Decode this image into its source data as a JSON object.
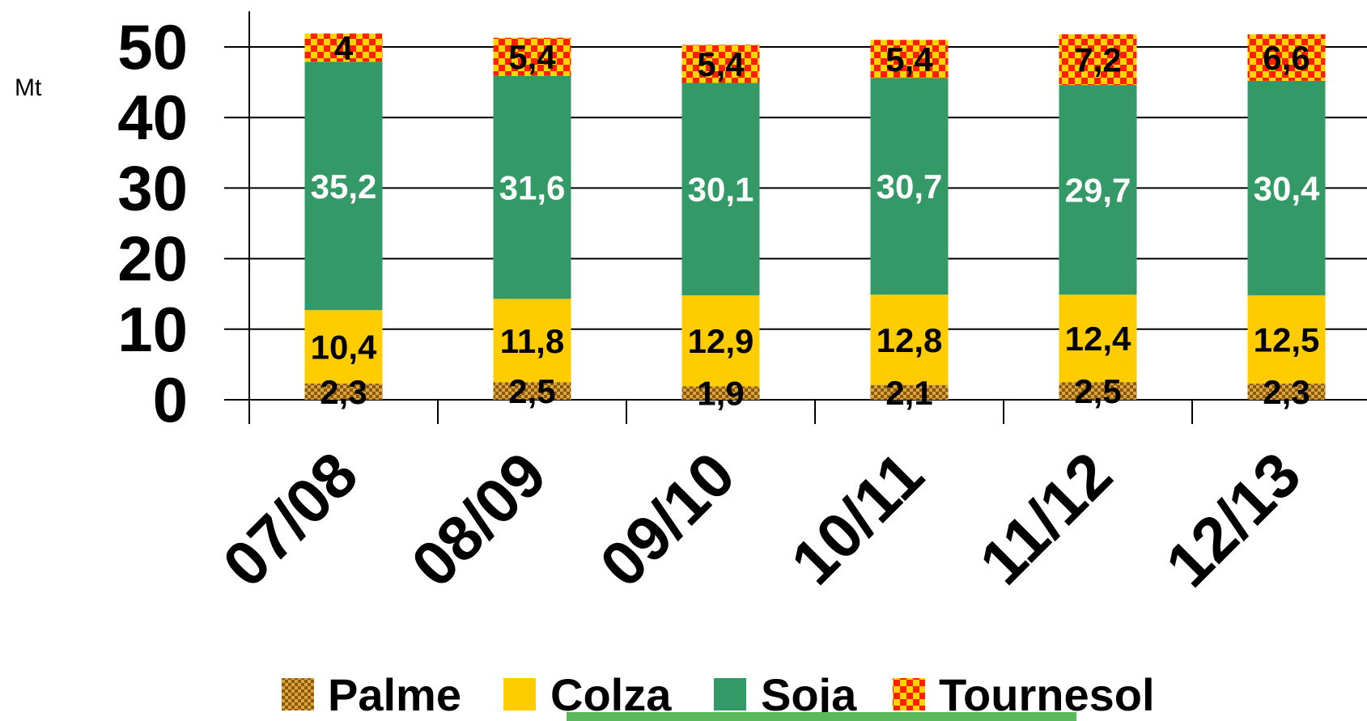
{
  "chart_data": {
    "type": "bar",
    "stacked": true,
    "ylabel": "Mt",
    "ylim": [
      0,
      50
    ],
    "yticks": [
      "0",
      "10",
      "20",
      "30",
      "40",
      "50"
    ],
    "grid": true,
    "legend_position": "bottom",
    "categories": [
      "07/08",
      "08/09",
      "09/10",
      "10/11",
      "11/12",
      "12/13"
    ],
    "series": [
      {
        "name": "Palme",
        "color": "#B8860B",
        "pattern": "palme",
        "label_color": "#000000",
        "values": [
          2.3,
          2.5,
          1.9,
          2.1,
          2.5,
          2.3
        ],
        "labels": [
          "2,3",
          "2,5",
          "1,9",
          "2,1",
          "2,5",
          "2,3"
        ]
      },
      {
        "name": "Colza",
        "color": "#FFCC00",
        "pattern": "none",
        "label_color": "#000000",
        "values": [
          10.4,
          11.8,
          12.9,
          12.8,
          12.4,
          12.5
        ],
        "labels": [
          "10,4",
          "11,8",
          "12,9",
          "12,8",
          "12,4",
          "12,5"
        ]
      },
      {
        "name": "Soja",
        "color": "#339966",
        "pattern": "none",
        "label_color": "#FFFFFF",
        "values": [
          35.2,
          31.6,
          30.1,
          30.7,
          29.7,
          30.4
        ],
        "labels": [
          "35,2",
          "31,6",
          "30,1",
          "30,7",
          "29,7",
          "30,4"
        ]
      },
      {
        "name": "Tournesol",
        "color": "#FF0000",
        "pattern": "tournesol",
        "label_color": "#000000",
        "values": [
          4,
          5.4,
          5.4,
          5.4,
          7.2,
          6.6
        ],
        "labels": [
          "4",
          "5,4",
          "5,4",
          "5,4",
          "7,2",
          "6,6"
        ]
      }
    ]
  }
}
